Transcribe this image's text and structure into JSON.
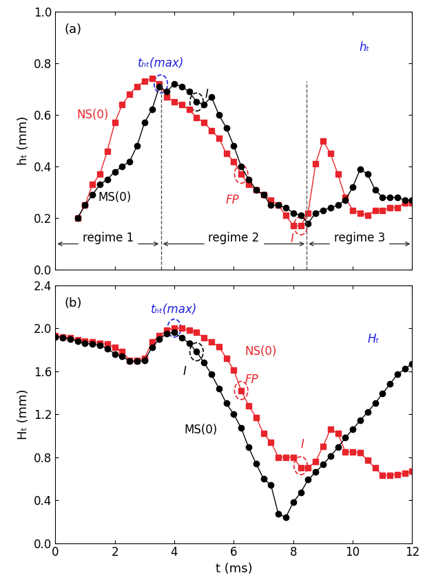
{
  "chart_data": [
    {
      "type": "line",
      "panel": "(a)",
      "y_label": "hₜ (mm)",
      "x_label": "",
      "tick_labels": "y",
      "xlim": [
        0,
        12
      ],
      "xticks": [
        0,
        2,
        4,
        6,
        8,
        10,
        12
      ],
      "ylim": [
        0,
        1.0
      ],
      "yticks": [
        {
          "value": 0,
          "label": "0.0"
        },
        {
          "value": 0.2,
          "label": "0.2"
        },
        {
          "value": 0.4,
          "label": "0.4"
        },
        {
          "value": 0.6,
          "label": "0.6"
        },
        {
          "value": 0.8,
          "label": "0.8"
        },
        {
          "value": 1.0,
          "label": "1.0"
        }
      ],
      "series": [
        {
          "name": "NS(0)",
          "color": "#e8242b",
          "marker": "square",
          "label_at": [
            1.25,
            0.6
          ],
          "x": [
            0.75,
            1.0,
            1.25,
            1.5,
            1.75,
            2.0,
            2.25,
            2.5,
            2.75,
            3.0,
            3.25,
            3.5,
            3.75,
            4.0,
            4.25,
            4.5,
            4.75,
            5.0,
            5.25,
            5.5,
            5.75,
            6.0,
            6.25,
            6.5,
            6.75,
            7.0,
            7.25,
            7.5,
            7.75,
            8.0,
            8.25,
            8.5,
            8.75,
            9.0,
            9.25,
            9.5,
            9.75,
            10.0,
            10.25,
            10.5,
            10.75,
            11.0,
            11.25,
            11.5,
            11.75,
            12.0
          ],
          "values": [
            0.2,
            0.25,
            0.33,
            0.37,
            0.46,
            0.57,
            0.64,
            0.68,
            0.71,
            0.73,
            0.74,
            0.72,
            0.67,
            0.65,
            0.64,
            0.62,
            0.59,
            0.57,
            0.54,
            0.51,
            0.45,
            0.42,
            0.37,
            0.33,
            0.31,
            0.29,
            0.27,
            0.25,
            0.21,
            0.17,
            0.17,
            0.22,
            0.41,
            0.5,
            0.45,
            0.37,
            0.28,
            0.23,
            0.22,
            0.21,
            0.23,
            0.23,
            0.24,
            0.24,
            0.26,
            0.26
          ]
        },
        {
          "name": "MS(0)",
          "color": "#000000",
          "marker": "circle",
          "label_at": [
            2.0,
            0.28
          ],
          "x": [
            0.75,
            1.0,
            1.25,
            1.5,
            1.75,
            2.0,
            2.25,
            2.5,
            2.75,
            3.0,
            3.25,
            3.5,
            3.75,
            4.0,
            4.25,
            4.5,
            4.75,
            5.0,
            5.25,
            5.5,
            5.75,
            6.0,
            6.25,
            6.5,
            6.75,
            7.0,
            7.25,
            7.5,
            7.75,
            8.0,
            8.25,
            8.5,
            8.75,
            9.0,
            9.25,
            9.5,
            9.75,
            10.0,
            10.25,
            10.5,
            10.75,
            11.0,
            11.25,
            11.5,
            11.75,
            12.0
          ],
          "values": [
            0.2,
            0.25,
            0.29,
            0.33,
            0.35,
            0.38,
            0.4,
            0.42,
            0.48,
            0.57,
            0.62,
            0.71,
            0.69,
            0.72,
            0.71,
            0.69,
            0.65,
            0.64,
            0.67,
            0.6,
            0.55,
            0.48,
            0.4,
            0.35,
            0.31,
            0.29,
            0.25,
            0.25,
            0.24,
            0.22,
            0.21,
            0.18,
            0.22,
            0.23,
            0.24,
            0.25,
            0.27,
            0.32,
            0.39,
            0.37,
            0.31,
            0.28,
            0.28,
            0.28,
            0.27,
            0.27
          ]
        }
      ],
      "annotations": [
        {
          "text": "tₕₜ(max)",
          "x": 3.55,
          "y": 0.8,
          "color": "#1f1fdc",
          "point": [
            3.55,
            0.72
          ]
        },
        {
          "text": "I",
          "x": 5.1,
          "y": 0.68,
          "color": "#000000",
          "point": [
            4.75,
            0.65
          ]
        },
        {
          "text": "FP",
          "x": 5.95,
          "y": 0.27,
          "color": "#e8242b",
          "point": [
            6.25,
            0.37
          ]
        },
        {
          "text": "I",
          "x": 7.95,
          "y": 0.12,
          "color": "#e8242b",
          "point": [
            8.25,
            0.17
          ]
        },
        {
          "text": "hₜ",
          "x": 10.4,
          "y": 0.86,
          "color": "#1f1fdc"
        }
      ],
      "regimes": [
        {
          "label": "regime 1",
          "start": 0,
          "end": 3.55
        },
        {
          "label": "regime 2",
          "start": 3.55,
          "end": 8.45
        },
        {
          "label": "regime 3",
          "start": 8.45,
          "end": 12
        }
      ],
      "regime_y": 0.1
    },
    {
      "type": "line",
      "panel": "(b)",
      "y_label": "Hₜ (mm)",
      "x_label": "t (ms)",
      "xlim": [
        0,
        12
      ],
      "xticks": [
        0,
        2,
        4,
        6,
        8,
        10,
        12
      ],
      "ylim": [
        0,
        2.4
      ],
      "yticks": [
        {
          "value": 0,
          "label": "0.0"
        },
        {
          "value": 0.4,
          "label": "0.4"
        },
        {
          "value": 0.8,
          "label": "0.8"
        },
        {
          "value": 1.2,
          "label": "1.2"
        },
        {
          "value": 1.6,
          "label": "1.6"
        },
        {
          "value": 2.0,
          "label": "2.0"
        },
        {
          "value": 2.4,
          "label": "2.4"
        }
      ],
      "series": [
        {
          "name": "NS(0)",
          "color": "#e8242b",
          "marker": "square",
          "label_at": [
            6.9,
            1.78
          ],
          "x": [
            0,
            0.25,
            0.5,
            0.75,
            1.0,
            1.25,
            1.5,
            1.75,
            2.0,
            2.25,
            2.5,
            2.75,
            3.0,
            3.25,
            3.5,
            3.75,
            4.0,
            4.25,
            4.5,
            4.75,
            5.0,
            5.25,
            5.5,
            5.75,
            6.0,
            6.25,
            6.5,
            6.75,
            7.0,
            7.25,
            7.5,
            7.75,
            8.0,
            8.25,
            8.5,
            8.75,
            9.0,
            9.25,
            9.5,
            9.75,
            10.0,
            10.25,
            10.5,
            10.75,
            11.0,
            11.25,
            11.5,
            11.75,
            12.0
          ],
          "values": [
            1.93,
            1.92,
            1.91,
            1.89,
            1.88,
            1.87,
            1.86,
            1.85,
            1.82,
            1.78,
            1.7,
            1.7,
            1.72,
            1.87,
            1.93,
            1.98,
            2.0,
            2.0,
            1.98,
            1.96,
            1.91,
            1.87,
            1.83,
            1.72,
            1.61,
            1.42,
            1.28,
            1.17,
            1.02,
            0.94,
            0.8,
            0.8,
            0.8,
            0.7,
            0.7,
            0.76,
            0.9,
            1.06,
            1.02,
            0.85,
            0.85,
            0.84,
            0.77,
            0.7,
            0.63,
            0.63,
            0.64,
            0.65,
            0.67
          ]
        },
        {
          "name": "MS(0)",
          "color": "#000000",
          "marker": "circle",
          "label_at": [
            4.9,
            1.05
          ],
          "x": [
            0,
            0.25,
            0.5,
            0.75,
            1.0,
            1.25,
            1.5,
            1.75,
            2.0,
            2.25,
            2.5,
            2.75,
            3.0,
            3.25,
            3.5,
            3.75,
            4.0,
            4.25,
            4.5,
            4.75,
            5.0,
            5.25,
            5.5,
            5.75,
            6.0,
            6.25,
            6.5,
            6.75,
            7.0,
            7.25,
            7.5,
            7.75,
            8.0,
            8.25,
            8.5,
            8.75,
            9.0,
            9.25,
            9.5,
            9.75,
            10.0,
            10.25,
            10.5,
            10.75,
            11.0,
            11.25,
            11.5,
            11.75,
            12.0
          ],
          "values": [
            1.92,
            1.91,
            1.9,
            1.88,
            1.86,
            1.85,
            1.84,
            1.81,
            1.76,
            1.74,
            1.69,
            1.69,
            1.7,
            1.82,
            1.9,
            1.95,
            1.96,
            1.91,
            1.86,
            1.78,
            1.68,
            1.57,
            1.44,
            1.3,
            1.2,
            1.07,
            0.89,
            0.74,
            0.6,
            0.54,
            0.27,
            0.24,
            0.38,
            0.47,
            0.59,
            0.66,
            0.73,
            0.81,
            0.89,
            0.98,
            1.06,
            1.14,
            1.22,
            1.3,
            1.39,
            1.48,
            1.57,
            1.62,
            1.67
          ]
        }
      ],
      "annotations": [
        {
          "text": "tₕₜ(max)",
          "x": 4.0,
          "y": 2.17,
          "color": "#1f1fdc",
          "point": [
            4.0,
            2.0
          ]
        },
        {
          "text": "I",
          "x": 4.35,
          "y": 1.6,
          "color": "#000000",
          "point": [
            4.75,
            1.78
          ]
        },
        {
          "text": "FP",
          "x": 6.6,
          "y": 1.52,
          "color": "#e8242b",
          "point": [
            6.25,
            1.42
          ]
        },
        {
          "text": "I",
          "x": 8.3,
          "y": 0.92,
          "color": "#e8242b",
          "point": [
            8.25,
            0.72
          ]
        },
        {
          "text": "Hₜ",
          "x": 10.7,
          "y": 1.9,
          "color": "#1f1fdc"
        }
      ]
    }
  ]
}
